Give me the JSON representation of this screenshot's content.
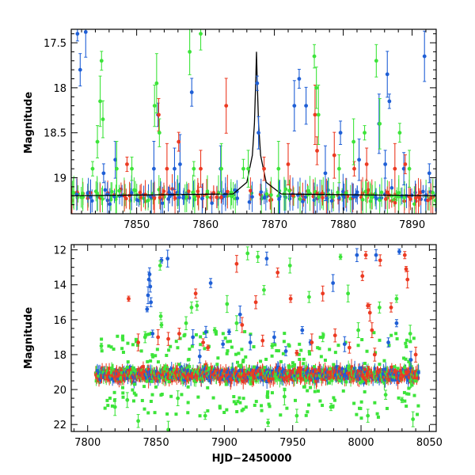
{
  "chart_data": [
    {
      "type": "scatter",
      "panel": "top",
      "ylabel": "Magnitude",
      "xlim": [
        7840.5,
        7893.5
      ],
      "ylim": [
        19.4,
        17.35
      ],
      "x_ticks": [
        7850,
        7860,
        7870,
        7880,
        7890
      ],
      "x_tick_labels": [
        "7850",
        "7860",
        "7870",
        "7880",
        "7890"
      ],
      "y_ticks": [
        17.5,
        18,
        18.5,
        19
      ],
      "y_tick_labels": [
        "17.5",
        "18",
        "18.5",
        "19"
      ],
      "baseline_mag": 19.2,
      "model_curve": {
        "color": "#000000",
        "peak_x": 7867.4,
        "peak_mag": 17.6,
        "x": [
          7840.5,
          7864,
          7866,
          7866.8,
          7867.1,
          7867.3,
          7867.4,
          7867.5,
          7867.7,
          7868.0,
          7868.8,
          7871,
          7893.5
        ],
        "mag": [
          19.2,
          19.18,
          19.05,
          18.75,
          18.4,
          17.9,
          17.6,
          17.9,
          18.4,
          18.75,
          19.05,
          19.18,
          19.2
        ]
      },
      "series": [
        {
          "name": "blue",
          "color": "#1f5fd6",
          "points": [
            [
              7841.4,
              17.4
            ],
            [
              7841.8,
              17.8
            ],
            [
              7842.6,
              17.38
            ],
            [
              7845.2,
              18.95
            ],
            [
              7846.9,
              18.8
            ],
            [
              7852.5,
              18.9
            ],
            [
              7853.1,
              18.3
            ],
            [
              7855.5,
              18.9
            ],
            [
              7856.3,
              18.85
            ],
            [
              7858.0,
              18.05
            ],
            [
              7862.2,
              18.9
            ],
            [
              7867.5,
              17.95
            ],
            [
              7867.7,
              18.5
            ],
            [
              7872.9,
              18.2
            ],
            [
              7873.6,
              17.9
            ],
            [
              7874.6,
              18.2
            ],
            [
              7877.4,
              18.95
            ],
            [
              7879.6,
              18.5
            ],
            [
              7882.3,
              18.8
            ],
            [
              7885.2,
              18.4
            ],
            [
              7886.1,
              18.85
            ],
            [
              7886.4,
              17.85
            ],
            [
              7886.7,
              18.15
            ],
            [
              7888.8,
              18.9
            ],
            [
              7891.8,
              17.65
            ],
            [
              7892.5,
              18.95
            ]
          ]
        },
        {
          "name": "red",
          "color": "#ec3a22",
          "points": [
            [
              7848.6,
              18.85
            ],
            [
              7853.2,
              18.3
            ],
            [
              7854.4,
              18.9
            ],
            [
              7856.1,
              18.6
            ],
            [
              7859.3,
              18.9
            ],
            [
              7863.0,
              18.2
            ],
            [
              7868.5,
              18.9
            ],
            [
              7872.0,
              18.85
            ],
            [
              7875.9,
              18.3
            ],
            [
              7876.2,
              18.7
            ],
            [
              7878.7,
              18.75
            ],
            [
              7881.6,
              18.9
            ],
            [
              7883.4,
              18.85
            ],
            [
              7887.5,
              18.9
            ],
            [
              7889.0,
              18.85
            ]
          ]
        },
        {
          "name": "green",
          "color": "#3de43a",
          "points": [
            [
              7843.6,
              18.9
            ],
            [
              7844.3,
              18.6
            ],
            [
              7844.7,
              18.15
            ],
            [
              7844.9,
              17.7
            ],
            [
              7845.1,
              18.35
            ],
            [
              7847.1,
              18.9
            ],
            [
              7849.3,
              18.9
            ],
            [
              7852.6,
              18.2
            ],
            [
              7852.9,
              17.95
            ],
            [
              7853.3,
              18.5
            ],
            [
              7857.7,
              17.6
            ],
            [
              7858.3,
              18.9
            ],
            [
              7859.3,
              17.4
            ],
            [
              7862.3,
              18.9
            ],
            [
              7865.5,
              18.9
            ],
            [
              7866.2,
              18.9
            ],
            [
              7870.6,
              18.9
            ],
            [
              7875.8,
              17.65
            ],
            [
              7876.1,
              18.0
            ],
            [
              7876.4,
              18.3
            ],
            [
              7879.4,
              18.9
            ],
            [
              7881.5,
              18.6
            ],
            [
              7883.1,
              18.5
            ],
            [
              7884.8,
              17.7
            ],
            [
              7885.3,
              18.4
            ],
            [
              7888.2,
              18.5
            ],
            [
              7889.6,
              18.9
            ]
          ]
        }
      ]
    },
    {
      "type": "scatter",
      "panel": "bottom",
      "xlabel": "HJD−2450000",
      "ylabel": "Magnitude",
      "xlim": [
        7788,
        8055
      ],
      "ylim": [
        22.4,
        11.7
      ],
      "x_ticks": [
        7800,
        7850,
        7900,
        7950,
        8000,
        8050
      ],
      "x_tick_labels": [
        "7800",
        "7850",
        "7900",
        "7950",
        "8000",
        "8050"
      ],
      "y_ticks": [
        12,
        14,
        16,
        18,
        20,
        22
      ],
      "y_tick_labels": [
        "12",
        "14",
        "16",
        "18",
        "20",
        "22"
      ],
      "baseline_mag": 19.15,
      "data_span": [
        7806,
        8042
      ],
      "series": [
        {
          "name": "blue",
          "color": "#1f5fd6",
          "points": [
            [
              7843.5,
              15.4
            ],
            [
              7844.2,
              14.6
            ],
            [
              7844.8,
              13.7
            ],
            [
              7845.3,
              13.4
            ],
            [
              7845.8,
              14.1
            ],
            [
              7846.3,
              15.0
            ],
            [
              7847.5,
              16.8
            ],
            [
              7854.0,
              12.6
            ],
            [
              7858.5,
              12.5
            ],
            [
              7877.0,
              17.0
            ],
            [
              7882.0,
              18.1
            ],
            [
              7886.5,
              16.7
            ],
            [
              7890.0,
              13.9
            ],
            [
              7899.0,
              17.4
            ],
            [
              7903.5,
              16.7
            ],
            [
              7911.5,
              15.7
            ],
            [
              7919.0,
              17.3
            ],
            [
              7931.0,
              12.5
            ],
            [
              7936.5,
              17.0
            ],
            [
              7945.0,
              17.8
            ],
            [
              7957.0,
              16.6
            ],
            [
              7963.0,
              17.3
            ],
            [
              7979.5,
              13.9
            ],
            [
              7988.0,
              17.4
            ],
            [
              7997.0,
              12.3
            ],
            [
              8011.0,
              12.3
            ],
            [
              8020.0,
              17.3
            ],
            [
              8026.0,
              16.2
            ],
            [
              8028.0,
              12.1
            ],
            [
              8036.5,
              18.3
            ]
          ]
        },
        {
          "name": "red",
          "color": "#ec3a22",
          "points": [
            [
              7830.0,
              14.8
            ],
            [
              7837.0,
              17.3
            ],
            [
              7851.5,
              17.0
            ],
            [
              7859.0,
              17.1
            ],
            [
              7867.0,
              16.8
            ],
            [
              7879.0,
              14.5
            ],
            [
              7884.5,
              17.3
            ],
            [
              7888.0,
              17.6
            ],
            [
              7909.0,
              12.8
            ],
            [
              7913.0,
              16.3
            ],
            [
              7923.0,
              15.0
            ],
            [
              7928.0,
              17.2
            ],
            [
              7939.0,
              13.3
            ],
            [
              7948.5,
              14.8
            ],
            [
              7953.0,
              17.9
            ],
            [
              7964.0,
              17.3
            ],
            [
              7972.0,
              14.5
            ],
            [
              7981.0,
              16.9
            ],
            [
              7991.5,
              17.6
            ],
            [
              8001.0,
              13.5
            ],
            [
              8003.5,
              12.3
            ],
            [
              8005.0,
              15.2
            ],
            [
              8006.5,
              15.6
            ],
            [
              8008.0,
              16.6
            ],
            [
              8010.0,
              18.0
            ],
            [
              8014.0,
              12.6
            ],
            [
              8022.0,
              15.3
            ],
            [
              8032.0,
              12.3
            ],
            [
              8033.0,
              13.1
            ],
            [
              8034.0,
              13.7
            ],
            [
              8040.0,
              18.0
            ]
          ]
        },
        {
          "name": "green",
          "color": "#3de43a",
          "points": [
            [
              7810.0,
              17.5
            ],
            [
              7820.0,
              21.0
            ],
            [
              7829.0,
              20.6
            ],
            [
              7837.0,
              21.8
            ],
            [
              7842.0,
              17.0
            ],
            [
              7853.0,
              12.9
            ],
            [
              7853.5,
              15.8
            ],
            [
              7854.0,
              16.3
            ],
            [
              7859.0,
              22.3
            ],
            [
              7866.0,
              20.5
            ],
            [
              7872.0,
              16.2
            ],
            [
              7876.0,
              15.3
            ],
            [
              7880.0,
              15.2
            ],
            [
              7886.0,
              21.5
            ],
            [
              7893.0,
              16.6
            ],
            [
              7902.0,
              15.1
            ],
            [
              7909.0,
              16.2
            ],
            [
              7917.0,
              12.2
            ],
            [
              7924.5,
              12.4
            ],
            [
              7929.0,
              14.3
            ],
            [
              7932.0,
              21.9
            ],
            [
              7935.0,
              17.5
            ],
            [
              7944.0,
              20.4
            ],
            [
              7948.0,
              12.9
            ],
            [
              7953.0,
              21.5
            ],
            [
              7962.0,
              14.7
            ],
            [
              7972.0,
              17.0
            ],
            [
              7978.0,
              21.0
            ],
            [
              7985.0,
              12.4
            ],
            [
              7990.5,
              14.5
            ],
            [
              7998.0,
              16.6
            ],
            [
              8005.0,
              21.5
            ],
            [
              8013.5,
              15.3
            ],
            [
              8018.0,
              20.3
            ],
            [
              8026.0,
              14.8
            ],
            [
              8030.0,
              20.6
            ],
            [
              8036.0,
              16.8
            ],
            [
              8038.0,
              21.7
            ]
          ]
        }
      ]
    }
  ]
}
